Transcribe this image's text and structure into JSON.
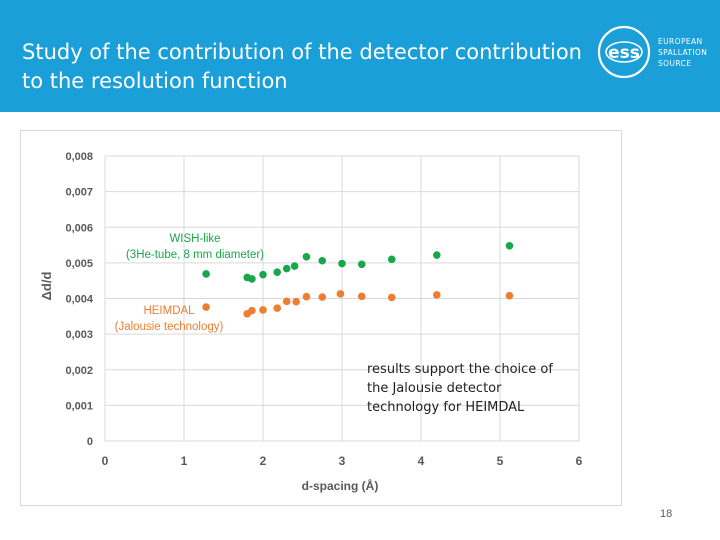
{
  "slide": {
    "title": "Study of the contribution of the detector contribution to the resolution function",
    "logo": {
      "abbr": "ess",
      "line1": "EUROPEAN",
      "line2": "SPALLATION",
      "line3": "SOURCE"
    },
    "note": "results support the choice of the Jalousie detector technology for HEIMDAL",
    "page_number": "18"
  },
  "colors": {
    "header": "#1a9fd8",
    "wish": "#1aa64a",
    "heimdal": "#ed7d31",
    "grid": "#d9d9d9",
    "tick": "#595959"
  },
  "chart_data": {
    "type": "scatter",
    "xlabel": "d-spacing (Å)",
    "ylabel": "Δd/d",
    "xlim": [
      0,
      6
    ],
    "ylim": [
      0,
      0.008
    ],
    "x_ticks": [
      "0",
      "1",
      "2",
      "3",
      "4",
      "5",
      "6"
    ],
    "y_ticks": [
      "0",
      "0,001",
      "0,002",
      "0,003",
      "0,004",
      "0,005",
      "0,006",
      "0,007",
      "0,008"
    ],
    "series": [
      {
        "name": "WISH-like",
        "label_line1": "WISH-like",
        "label_line2": "(3He-tube, 8 mm diameter)",
        "color": "#1aa64a",
        "x": [
          1.28,
          1.8,
          1.86,
          2.0,
          2.18,
          2.3,
          2.4,
          2.55,
          2.75,
          3.0,
          3.25,
          3.63,
          4.2,
          5.12
        ],
        "y": [
          0.00469,
          0.00459,
          0.00455,
          0.00467,
          0.00474,
          0.00484,
          0.00491,
          0.00517,
          0.00506,
          0.00498,
          0.00496,
          0.0051,
          0.00522,
          0.00548
        ]
      },
      {
        "name": "HEIMDAL",
        "label_line1": "HEIMDAL",
        "label_line2": "(Jalousie technology)",
        "color": "#ed7d31",
        "x": [
          1.28,
          1.8,
          1.86,
          2.0,
          2.18,
          2.3,
          2.42,
          2.55,
          2.75,
          2.98,
          3.25,
          3.63,
          4.2,
          5.12
        ],
        "y": [
          0.00376,
          0.00357,
          0.00366,
          0.00368,
          0.00373,
          0.00392,
          0.00391,
          0.00405,
          0.00404,
          0.00413,
          0.00406,
          0.00403,
          0.0041,
          0.00408
        ]
      }
    ]
  }
}
